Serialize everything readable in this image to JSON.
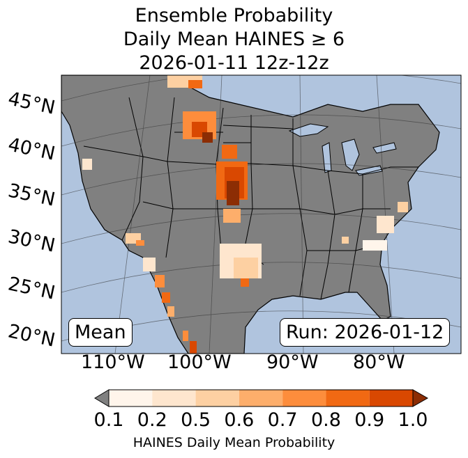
{
  "title": {
    "line1": "Ensemble Probability",
    "line2": "Daily Mean HAINES ≥ 6",
    "line3": "2026-01-11 12z-12z"
  },
  "map": {
    "ocean_color": "#b0c4de",
    "land_color": "#808080",
    "lat_labels": [
      "45°N",
      "40°N",
      "35°N",
      "30°N",
      "25°N",
      "20°N"
    ],
    "lon_labels": [
      "110°W",
      "100°W",
      "90°W",
      "80°W"
    ]
  },
  "boxes": {
    "left": "Mean",
    "right": "Run: 2026-01-12"
  },
  "colorbar": {
    "ticks": [
      "0.1",
      "0.2",
      "0.5",
      "0.6",
      "0.7",
      "0.8",
      "0.9",
      "1.0"
    ],
    "colors": [
      "#fff5eb",
      "#fee6ce",
      "#fdd0a2",
      "#fdae6b",
      "#fd8d3c",
      "#f16913",
      "#d94801",
      "#8c2d04"
    ],
    "under_color": "#808080",
    "label": "HAINES Daily Mean Probability"
  }
}
